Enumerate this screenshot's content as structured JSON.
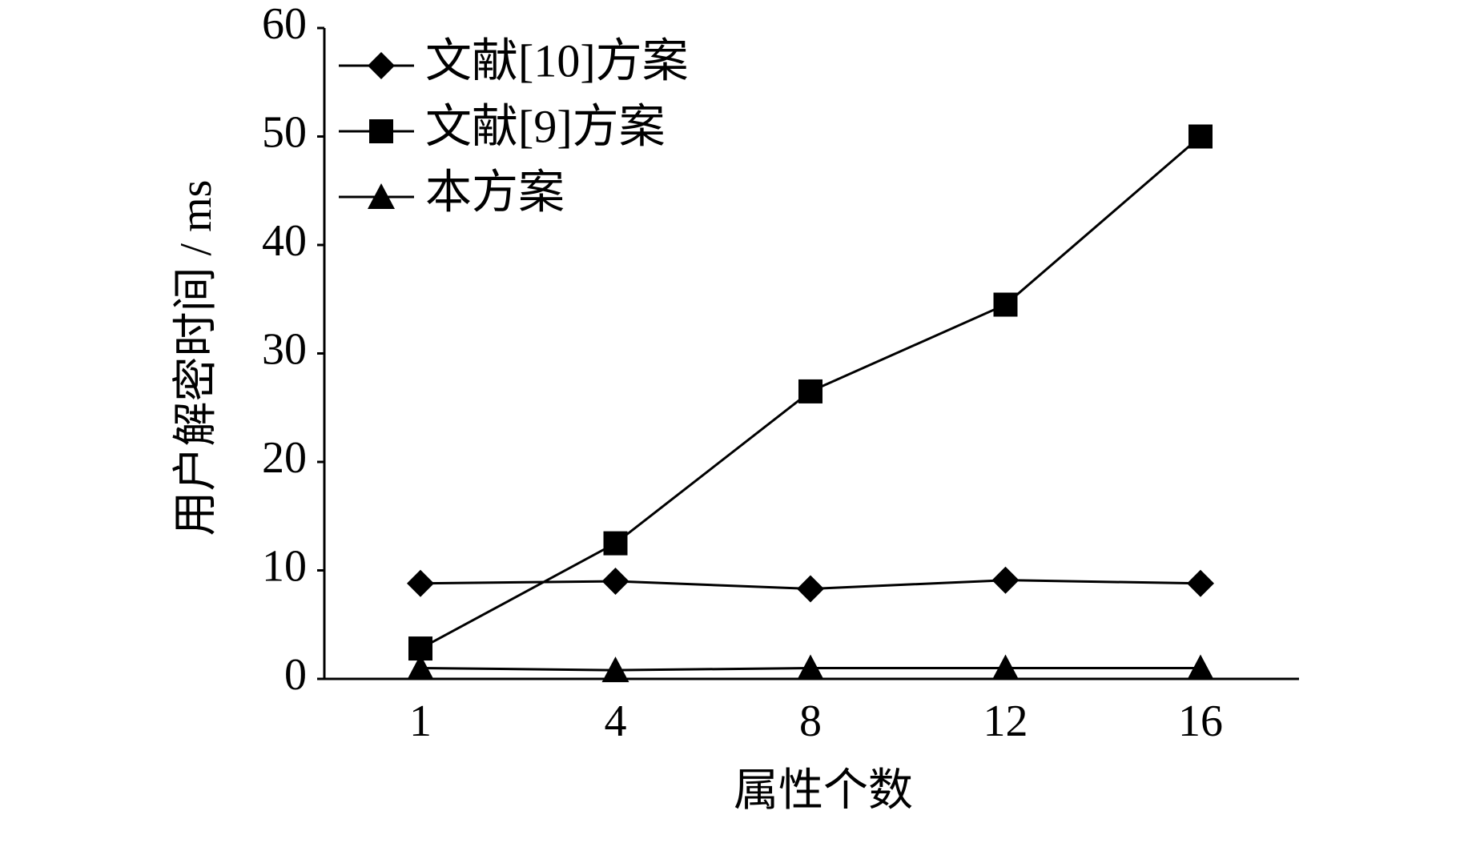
{
  "chart_data": {
    "type": "line",
    "x_label": "属性个数",
    "y_label": "用户解密时间 / ms",
    "categories": [
      "1",
      "4",
      "8",
      "12",
      "16"
    ],
    "series": [
      {
        "name": "文献[10]方案",
        "color": "#000000",
        "marker": "diamond",
        "values": [
          8.8,
          9.0,
          8.3,
          9.1,
          8.8
        ]
      },
      {
        "name": "文献[9]方案",
        "color": "#000000",
        "marker": "square",
        "values": [
          2.8,
          12.5,
          26.5,
          34.5,
          50
        ]
      },
      {
        "name": "本方案",
        "color": "#000000",
        "marker": "triangle",
        "values": [
          1.0,
          0.8,
          1.0,
          1.0,
          1.0
        ]
      }
    ],
    "ylim": [
      0,
      60
    ],
    "yticks": [
      0,
      10,
      20,
      30,
      40,
      50,
      60
    ],
    "legend": "upper left"
  }
}
